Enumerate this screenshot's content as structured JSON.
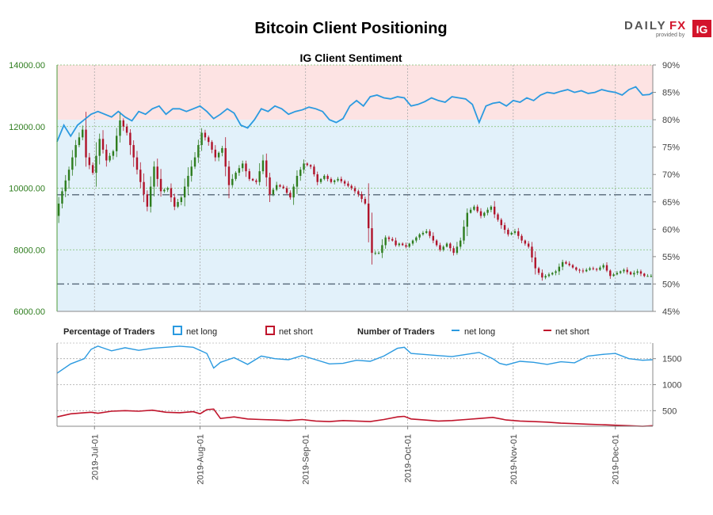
{
  "page_title": "Bitcoin Client Positioning",
  "brand": {
    "daily": "DAILY",
    "fx": "FX",
    "provided_by": "provided by",
    "ig": "IG",
    "colors": {
      "daily": "#555555",
      "fx": "#d3142b",
      "ig_bg": "#d3142b"
    }
  },
  "colors": {
    "net_long": "#2b9ae0",
    "net_short": "#c0142b",
    "up_candle": "#2e7d1e",
    "down_candle": "#b0142b",
    "short_zone": "#fde3e3",
    "long_zone": "#e2f1fa"
  },
  "chart_data": [
    {
      "type": "candlestick",
      "title": "IG Client Sentiment",
      "ylim_price": [
        6000,
        14000
      ],
      "y_ticks_price": [
        "14000.00",
        "12000.00",
        "10000.00",
        "8000.00",
        "6000.00"
      ],
      "ylim_percent": [
        45,
        90
      ],
      "y_ticks_percent": [
        "90%",
        "85%",
        "80%",
        "75%",
        "70%",
        "65%",
        "60%",
        "55%",
        "50%",
        "45%"
      ],
      "reference_lines_percent": [
        50,
        66.3
      ],
      "x_range_days": [
        -8,
        167
      ],
      "x_ticks": [
        {
          "label": "2019-Jul-01",
          "day": 3
        },
        {
          "label": "2019-Aug-01",
          "day": 34
        },
        {
          "label": "2019-Sep-01",
          "day": 65
        },
        {
          "label": "2019-Oct-01",
          "day": 95
        },
        {
          "label": "2019-Nov-01",
          "day": 126
        },
        {
          "label": "2019-Dec-01",
          "day": 156
        }
      ],
      "price_anchor_days": [
        -8,
        -6,
        -4,
        -2,
        0,
        1,
        3,
        5,
        7,
        9,
        11,
        13,
        15,
        17,
        19,
        21,
        23,
        25,
        27,
        29,
        31,
        33,
        35,
        37,
        39,
        41,
        43,
        45,
        47,
        49,
        51,
        53,
        55,
        57,
        59,
        61,
        63,
        65,
        67,
        69,
        71,
        73,
        75,
        77,
        79,
        81,
        83,
        85,
        87,
        89,
        91,
        92,
        93,
        95,
        97,
        99,
        101,
        103,
        105,
        107,
        109,
        111,
        113,
        115,
        117,
        119,
        120,
        121,
        123,
        125,
        127,
        129,
        131,
        133,
        135,
        137,
        139,
        141,
        143,
        145,
        147,
        149,
        151,
        153,
        155,
        157,
        159,
        161,
        163,
        165,
        167
      ],
      "price_anchor_values": [
        9100,
        9900,
        10600,
        11400,
        11900,
        11000,
        10500,
        11600,
        10900,
        11200,
        12200,
        11800,
        11000,
        10200,
        9400,
        10700,
        9900,
        10000,
        9400,
        9700,
        10400,
        11000,
        11800,
        11500,
        11000,
        11300,
        10100,
        10500,
        10800,
        10300,
        10200,
        10900,
        9800,
        10100,
        10000,
        9700,
        10400,
        10800,
        10700,
        10200,
        10400,
        10200,
        10300,
        10150,
        10000,
        9800,
        9500,
        7900,
        7900,
        8400,
        8300,
        8150,
        8200,
        8100,
        8300,
        8500,
        8600,
        8300,
        8000,
        8200,
        7900,
        8300,
        9200,
        9400,
        9100,
        9300,
        9400,
        9150,
        8800,
        8500,
        8600,
        8300,
        8100,
        7400,
        7100,
        7200,
        7300,
        7600,
        7500,
        7350,
        7300,
        7400,
        7350,
        7500,
        7150,
        7250,
        7350,
        7200,
        7300,
        7150,
        7150
      ],
      "series": [
        {
          "name": "net long %",
          "axis": "percent",
          "days": [
            -8,
            -6,
            -4,
            -2,
            0,
            2,
            4,
            6,
            8,
            10,
            12,
            14,
            16,
            18,
            20,
            22,
            24,
            26,
            28,
            30,
            32,
            34,
            36,
            38,
            40,
            42,
            44,
            46,
            48,
            50,
            52,
            54,
            56,
            58,
            60,
            62,
            64,
            66,
            68,
            70,
            72,
            74,
            76,
            78,
            80,
            82,
            84,
            86,
            88,
            90,
            92,
            94,
            96,
            98,
            100,
            102,
            104,
            106,
            108,
            110,
            112,
            114,
            116,
            118,
            120,
            122,
            124,
            126,
            128,
            130,
            132,
            134,
            136,
            138,
            140,
            142,
            144,
            146,
            148,
            150,
            152,
            154,
            156,
            158,
            160,
            162,
            164,
            166,
            167
          ],
          "values": [
            76,
            79,
            77,
            79,
            80,
            81,
            81.5,
            81,
            80.5,
            81.5,
            80.5,
            79.8,
            81.5,
            81,
            82,
            82.5,
            81,
            82,
            82,
            81.5,
            82,
            82.5,
            81.5,
            80.2,
            81,
            82,
            81.2,
            79,
            78.5,
            80,
            82,
            81.5,
            82.5,
            82,
            81,
            81.5,
            81.8,
            82.3,
            82,
            81.5,
            80,
            79.5,
            80.2,
            82.5,
            83.5,
            82.5,
            84.2,
            84.5,
            84,
            83.8,
            84.2,
            84,
            82.5,
            82.8,
            83.3,
            84,
            83.5,
            83.2,
            84.2,
            84,
            83.8,
            82.8,
            79.5,
            82.5,
            83,
            83.2,
            82.5,
            83.5,
            83.2,
            84,
            83.5,
            84.5,
            85,
            84.8,
            85.2,
            85.5,
            85,
            85.3,
            84.8,
            85,
            85.5,
            85.2,
            85,
            84.5,
            85.5,
            86,
            84.5,
            84.6,
            85
          ]
        },
        {
          "name": "net long traders",
          "axis": "count",
          "days": [
            -8,
            -4,
            0,
            2,
            4,
            8,
            12,
            16,
            20,
            24,
            28,
            32,
            36,
            38,
            40,
            44,
            48,
            52,
            56,
            60,
            64,
            68,
            72,
            76,
            80,
            84,
            88,
            92,
            94,
            96,
            100,
            104,
            108,
            112,
            116,
            120,
            122,
            124,
            128,
            132,
            136,
            140,
            144,
            148,
            152,
            156,
            160,
            164,
            167
          ],
          "values": [
            1220,
            1400,
            1500,
            1680,
            1740,
            1650,
            1710,
            1660,
            1700,
            1720,
            1740,
            1720,
            1600,
            1320,
            1430,
            1520,
            1390,
            1550,
            1500,
            1480,
            1560,
            1480,
            1400,
            1410,
            1470,
            1450,
            1550,
            1700,
            1720,
            1600,
            1580,
            1560,
            1540,
            1580,
            1620,
            1500,
            1410,
            1380,
            1450,
            1430,
            1390,
            1440,
            1420,
            1550,
            1580,
            1600,
            1500,
            1470,
            1480
          ]
        },
        {
          "name": "net short traders",
          "axis": "count",
          "days": [
            -8,
            -4,
            0,
            2,
            4,
            8,
            12,
            16,
            20,
            24,
            28,
            32,
            34,
            36,
            38,
            40,
            44,
            48,
            52,
            56,
            60,
            64,
            68,
            72,
            76,
            80,
            84,
            88,
            92,
            94,
            96,
            100,
            104,
            108,
            112,
            116,
            120,
            124,
            128,
            132,
            136,
            140,
            144,
            148,
            152,
            156,
            160,
            164,
            167
          ],
          "values": [
            380,
            440,
            460,
            470,
            450,
            490,
            500,
            490,
            510,
            470,
            460,
            480,
            440,
            520,
            530,
            350,
            380,
            340,
            330,
            320,
            310,
            330,
            300,
            290,
            310,
            300,
            290,
            330,
            380,
            390,
            340,
            320,
            300,
            310,
            330,
            350,
            370,
            320,
            300,
            290,
            280,
            260,
            250,
            240,
            230,
            220,
            210,
            200,
            210
          ]
        }
      ],
      "legend": {
        "percentage_title": "Percentage of Traders",
        "pct_long": "net long",
        "pct_short": "net short",
        "number_title": "Number of Traders",
        "num_long": "net long",
        "num_short": "net short"
      },
      "lower_ylim_count": [
        200,
        1800
      ],
      "lower_y_ticks": [
        "1500",
        "1000",
        "500"
      ]
    }
  ]
}
